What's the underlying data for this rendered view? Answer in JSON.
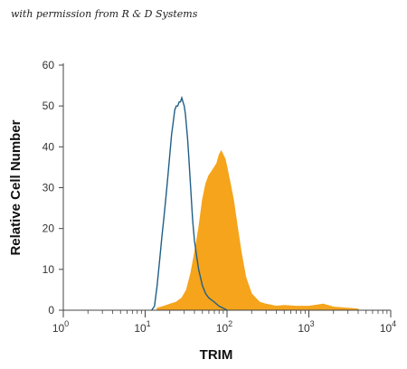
{
  "watermark": "with permission from R & D Systems",
  "chart_data": {
    "type": "area",
    "title": "",
    "xlabel": "TRIM",
    "ylabel": "Relative Cell Number",
    "x_scale": "log",
    "xlim": [
      1,
      10000
    ],
    "ylim": [
      0,
      60
    ],
    "grid": false,
    "legend": "none",
    "x_tick_labels": [
      {
        "value": 1,
        "base": "10",
        "exp": "0"
      },
      {
        "value": 10,
        "base": "10",
        "exp": "1"
      },
      {
        "value": 100,
        "base": "10",
        "exp": "2"
      },
      {
        "value": 1000,
        "base": "10",
        "exp": "3"
      },
      {
        "value": 10000,
        "base": "10",
        "exp": "4"
      }
    ],
    "y_ticks": [
      "0",
      "10",
      "20",
      "30",
      "40",
      "50",
      "60"
    ],
    "series": [
      {
        "style": "filled",
        "color": "#f5a41c",
        "x": [
          14,
          17,
          20,
          24,
          28,
          32,
          36,
          40,
          45,
          50,
          55,
          60,
          65,
          70,
          75,
          80,
          85,
          90,
          95,
          100,
          110,
          120,
          135,
          150,
          170,
          200,
          250,
          300,
          400,
          500,
          700,
          1000,
          1500,
          2000,
          3000,
          4000
        ],
        "y": [
          0.5,
          1,
          1.5,
          2,
          3,
          5,
          9,
          14,
          20,
          27,
          31,
          33,
          34,
          35,
          36,
          38,
          39,
          38,
          37,
          35,
          31,
          27,
          20,
          14,
          8,
          4,
          2,
          1.5,
          1,
          1.2,
          1,
          1,
          1.5,
          0.8,
          0.5,
          0.3
        ]
      },
      {
        "style": "outline",
        "color": "#1f5f86",
        "x": [
          12,
          13,
          14,
          15,
          16,
          17,
          18,
          19,
          20,
          21,
          22,
          23,
          24,
          25,
          26,
          27,
          28,
          29,
          30,
          31,
          32,
          33,
          34,
          35,
          36,
          37,
          38,
          40,
          42,
          45,
          50,
          55,
          60,
          70,
          80,
          90,
          100
        ],
        "y": [
          0,
          1,
          6,
          12,
          18,
          23,
          28,
          33,
          38,
          43,
          46,
          49,
          50,
          50,
          51,
          51,
          52,
          51,
          50,
          48,
          45,
          42,
          38,
          34,
          30,
          26,
          22,
          17,
          14,
          10,
          6,
          4,
          3,
          2,
          1,
          0.5,
          0
        ]
      }
    ]
  }
}
